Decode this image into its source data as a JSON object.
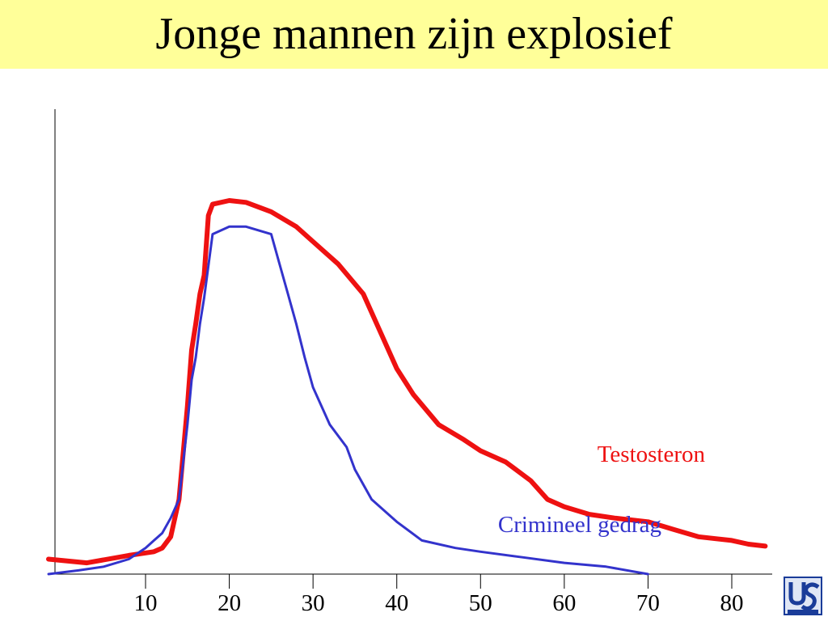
{
  "slide": {
    "title": "Jonge mannen zijn explosief",
    "title_bg": "#ffff99"
  },
  "chart_data": {
    "type": "line",
    "title": "Jonge mannen zijn explosief",
    "xlabel": "",
    "ylabel": "",
    "xticks": [
      10,
      20,
      30,
      40,
      50,
      60,
      70,
      80
    ],
    "xlim": [
      0,
      85
    ],
    "ylim": [
      0,
      100
    ],
    "y_axis_ticks": false,
    "grid": false,
    "series": [
      {
        "name": "Testosteron",
        "color": "#ee1111",
        "x": [
          0,
          3,
          8,
          11,
          12,
          13,
          14,
          15,
          15.5,
          16,
          16.5,
          17,
          17.5,
          18,
          20,
          22,
          25,
          28,
          30,
          33,
          36,
          38,
          40,
          42,
          45,
          48,
          50,
          53,
          56,
          58,
          60,
          63,
          66,
          70,
          73,
          76,
          80,
          82,
          84
        ],
        "y": [
          4,
          3,
          5,
          6,
          7,
          10,
          20,
          45,
          60,
          67,
          75,
          80,
          96,
          99,
          100,
          99.5,
          97,
          93,
          89,
          83,
          75,
          65,
          55,
          48,
          40,
          36,
          33,
          30,
          25,
          20,
          18,
          16,
          15,
          14,
          12,
          10,
          9,
          8,
          7.5
        ]
      },
      {
        "name": "Crimineel gedrag",
        "color": "#3333cc",
        "x": [
          0,
          2,
          5,
          8,
          10,
          11,
          12,
          13,
          14,
          15,
          15.5,
          16,
          16.5,
          17,
          18,
          20,
          22,
          25,
          26,
          27,
          28,
          29,
          30,
          32,
          34,
          35,
          37,
          40,
          43,
          47,
          50,
          55,
          60,
          65,
          70
        ],
        "y": [
          0,
          1,
          2,
          4,
          7,
          9,
          11,
          15,
          20,
          40,
          52,
          58,
          67,
          74,
          91,
          93,
          93,
          91,
          83,
          75,
          67,
          58,
          50,
          40,
          34,
          28,
          20,
          14,
          9,
          7,
          6,
          4.5,
          3,
          2,
          0
        ]
      }
    ],
    "annotations": [
      "Testosteron",
      "Crimineel gedrag"
    ]
  }
}
